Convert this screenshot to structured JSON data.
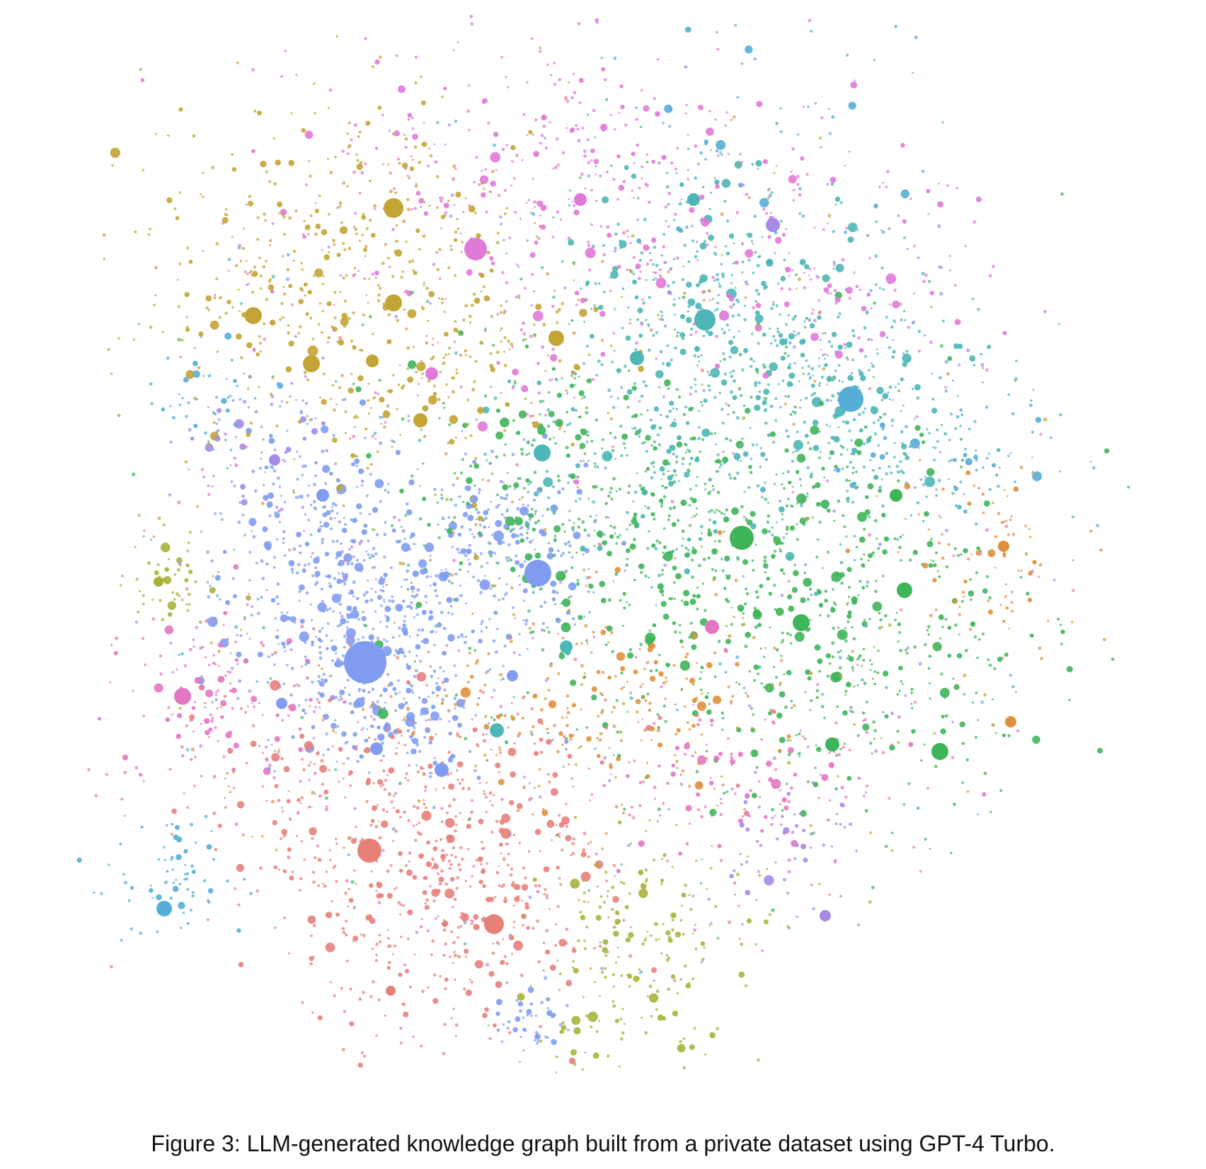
{
  "figure": {
    "caption": "Figure 3: LLM-generated knowledge graph built from a private dataset using GPT-4 Turbo."
  },
  "graph": {
    "type": "force-directed-knowledge-graph",
    "node_style": "colored circles sized by degree, no visible edges",
    "community_colors": {
      "blue": "#7f9cf0",
      "teal": "#4db6b6",
      "green": "#3fb55a",
      "pink": "#e377c2",
      "magenta": "#e07ad8",
      "olive": "#c4a434",
      "salmon": "#e8807a",
      "orange": "#e0913c",
      "sky": "#55aed6",
      "purple": "#a58ae8",
      "yellowgreen": "#a8b23a"
    }
  }
}
